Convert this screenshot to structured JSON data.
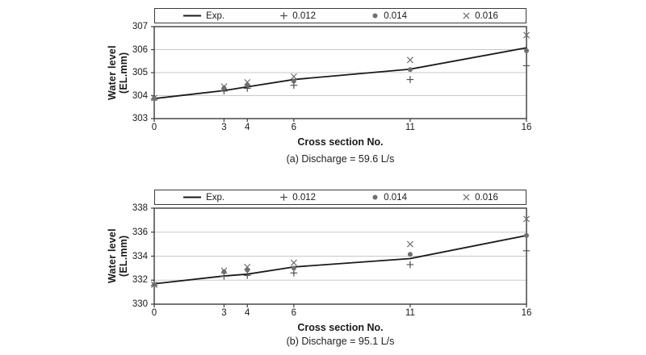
{
  "page": {
    "background": "#ffffff"
  },
  "style": {
    "grid_color": "#c8c8c8",
    "border_color": "#3a3a3a",
    "line_color": "#1a1a1a",
    "marker_gray": "#6f6f6f",
    "plus_gray": "#4d4d4d"
  },
  "chart_data": [
    {
      "type": "line",
      "caption": "(a) Discharge = 59.6 L/s",
      "xlabel": "Cross section No.",
      "ylabel": "Water level (EL.mm)",
      "xlim": [
        0,
        16
      ],
      "ylim": [
        303,
        307
      ],
      "x_ticks": [
        0,
        3,
        4,
        6,
        11,
        16
      ],
      "y_ticks": [
        303,
        304,
        305,
        306,
        307
      ],
      "grid": "horizontal",
      "legend_position": "top",
      "x": [
        0,
        3,
        4,
        6,
        11,
        16
      ],
      "series": [
        {
          "name": "Exp.",
          "style": "line",
          "color": "#1a1a1a",
          "values": [
            303.87,
            304.22,
            304.38,
            304.7,
            305.15,
            306.08
          ]
        },
        {
          "name": "0.012",
          "style": "plus",
          "color": "#4d4d4d",
          "values": [
            303.85,
            304.2,
            304.32,
            304.45,
            304.7,
            305.3
          ]
        },
        {
          "name": "0.014",
          "style": "dot",
          "color": "#6f6f6f",
          "values": [
            303.87,
            304.33,
            304.47,
            304.63,
            305.13,
            305.95
          ]
        },
        {
          "name": "0.016",
          "style": "x",
          "color": "#6f6f6f",
          "values": [
            303.9,
            304.4,
            304.58,
            304.83,
            305.55,
            306.63
          ]
        }
      ]
    },
    {
      "type": "line",
      "caption": "(b) Discharge = 95.1 L/s",
      "xlabel": "Cross section No.",
      "ylabel": "Water level (EL.mm)",
      "xlim": [
        0,
        16
      ],
      "ylim": [
        330,
        338
      ],
      "x_ticks": [
        0,
        3,
        4,
        6,
        11,
        16
      ],
      "y_ticks": [
        330,
        332,
        334,
        336,
        338
      ],
      "grid": "horizontal",
      "legend_position": "top",
      "x": [
        0,
        3,
        4,
        6,
        11,
        16
      ],
      "series": [
        {
          "name": "Exp.",
          "style": "line",
          "color": "#1a1a1a",
          "values": [
            331.7,
            332.35,
            332.5,
            333.1,
            333.8,
            335.72
          ]
        },
        {
          "name": "0.012",
          "style": "plus",
          "color": "#4d4d4d",
          "values": [
            331.55,
            332.33,
            332.4,
            332.6,
            333.3,
            334.45
          ]
        },
        {
          "name": "0.014",
          "style": "dot",
          "color": "#6f6f6f",
          "values": [
            331.62,
            332.7,
            332.85,
            333.0,
            334.15,
            335.72
          ]
        },
        {
          "name": "0.016",
          "style": "x",
          "color": "#6f6f6f",
          "values": [
            331.62,
            332.8,
            333.1,
            333.45,
            335.0,
            337.1
          ]
        }
      ]
    }
  ]
}
